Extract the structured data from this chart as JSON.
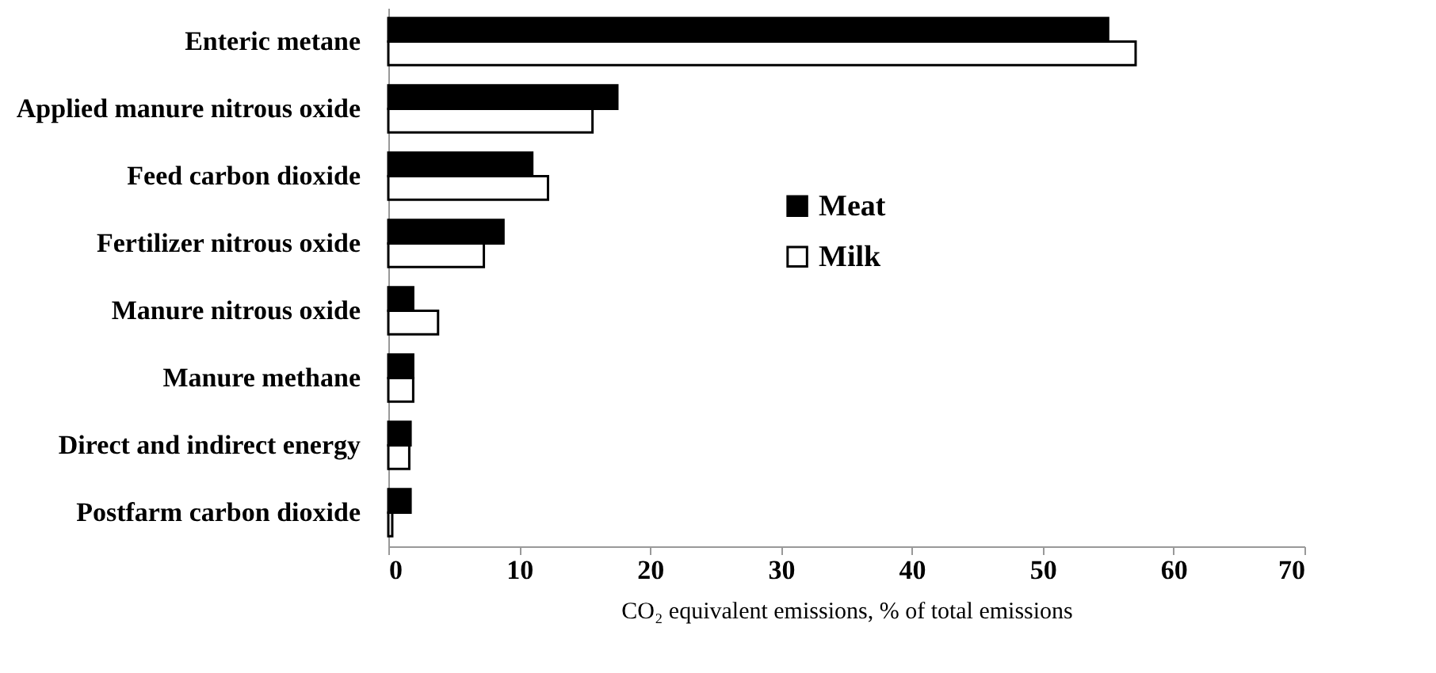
{
  "chart_data": {
    "type": "bar",
    "orientation": "horizontal",
    "categories": [
      "Enteric metane",
      "Applied  manure nitrous oxide",
      "Feed carbon dioxide",
      "Fertilizer  nitrous oxide",
      "Manure nitrous oxide",
      "Manure methane",
      "Direct and indirect energy",
      "Postfarm carbon dioxide"
    ],
    "series": [
      {
        "name": "Meat",
        "color": "#000000",
        "values": [
          55,
          17.5,
          11,
          8.8,
          1.9,
          1.9,
          1.7,
          1.7
        ]
      },
      {
        "name": "Milk",
        "color": "#ffffff",
        "values": [
          57.1,
          15.6,
          12.2,
          7.3,
          3.8,
          1.9,
          1.6,
          0.3
        ]
      }
    ],
    "xlabel": "CO₂ equivalent emissions, % of total emissions",
    "xlim": [
      0,
      70
    ],
    "xticks": [
      0,
      10,
      20,
      30,
      40,
      50,
      60,
      70
    ],
    "legend": "right",
    "grid": false
  }
}
